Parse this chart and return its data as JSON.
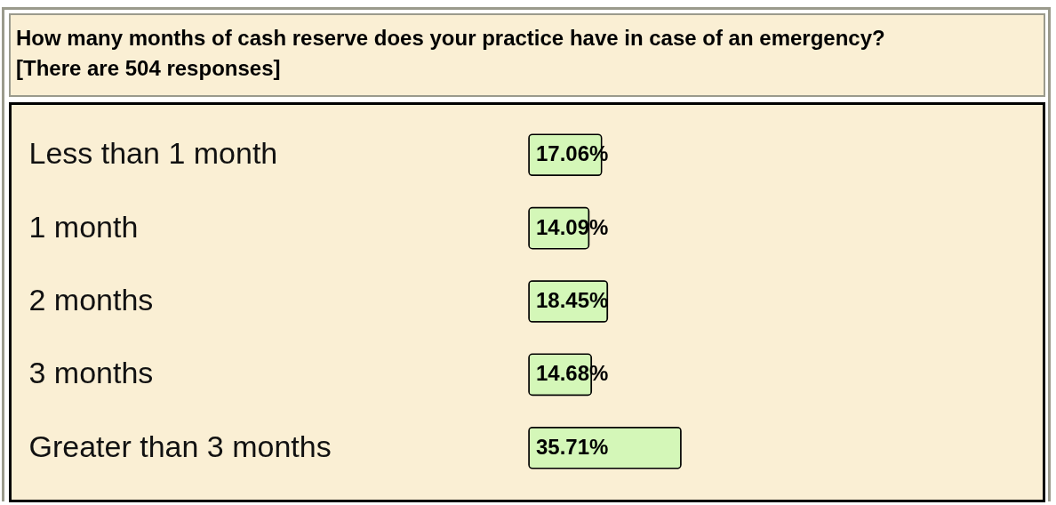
{
  "chart_data": {
    "type": "bar",
    "orientation": "horizontal",
    "title": "How many months of cash reserve does your practice have in case of an emergency?",
    "subtitle": "[There are 504 responses]",
    "categories": [
      "Less than 1 month",
      "1 month",
      "2 months",
      "3 months",
      "Greater than 3 months"
    ],
    "values": [
      17.06,
      14.09,
      18.45,
      14.68,
      35.71
    ],
    "value_labels": [
      "17.06%",
      "14.09%",
      "18.45%",
      "14.68%",
      "35.71%"
    ],
    "color": "#d4f7b8",
    "tick_labels": "y"
  }
}
